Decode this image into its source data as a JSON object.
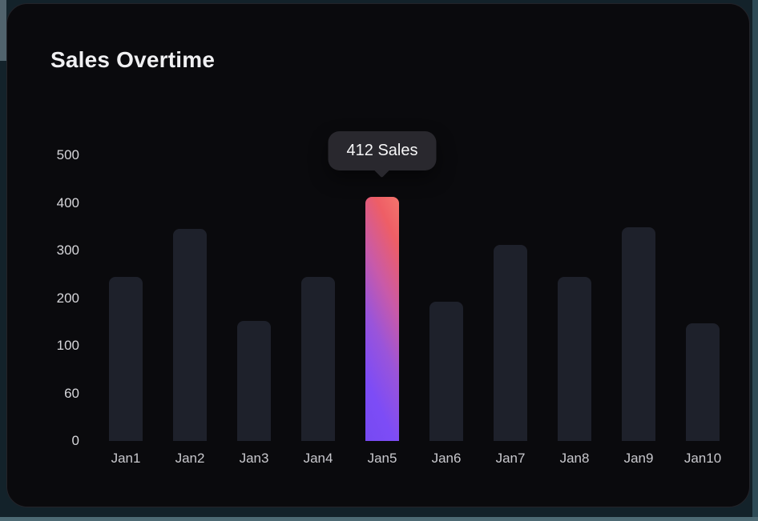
{
  "page": {
    "title": "Sales Overtime"
  },
  "tooltip": {
    "text": "412 Sales"
  },
  "chart_data": {
    "type": "bar",
    "title": "Sales Overtime",
    "categories": [
      "Jan1",
      "Jan2",
      "Jan3",
      "Jan4",
      "Jan5",
      "Jan6",
      "Jan7",
      "Jan8",
      "Jan9",
      "Jan10"
    ],
    "values": [
      244,
      345,
      152,
      244,
      412,
      192,
      312,
      244,
      348,
      147
    ],
    "highlighted_index": 4,
    "highlight_tooltip": "412 Sales",
    "yticks": [
      0,
      60,
      100,
      200,
      300,
      400,
      500
    ],
    "ylim": [
      0,
      500
    ],
    "xlabel": "",
    "ylabel": "",
    "grid": false,
    "legend": false,
    "colors": {
      "card_background": "#0a0a0d",
      "bar": "#1e212b",
      "highlight_gradient_top": "#ee5e66",
      "highlight_gradient_bottom": "#764af2",
      "axis_label": "#d6d6da",
      "tooltip_background": "#29282e",
      "page_edge": "#4d6a74"
    }
  }
}
